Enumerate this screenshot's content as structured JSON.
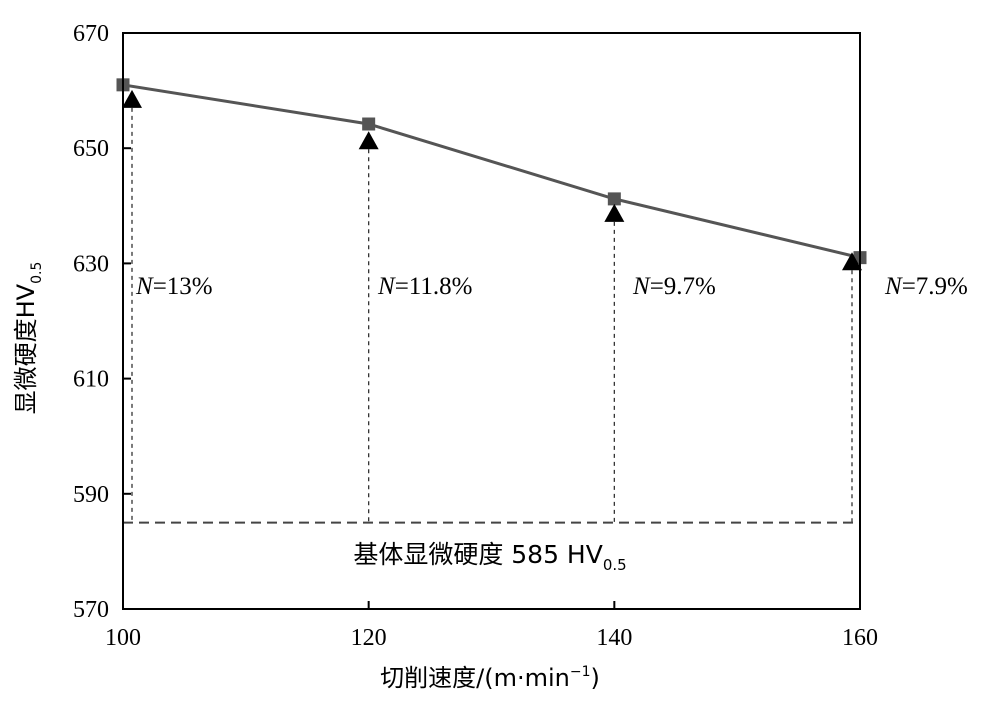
{
  "chart_data": {
    "type": "line",
    "xlabel": "切削速度/(m·min",
    "xlabel_sup": "−1",
    "xlabel_close": ")",
    "ylabel": "显微硬度HV",
    "ylabel_sub": "0.5",
    "xlim": [
      100,
      160
    ],
    "ylim": [
      570,
      670
    ],
    "x_ticks": [
      "100",
      "120",
      "140",
      "160"
    ],
    "y_ticks": [
      "570",
      "590",
      "610",
      "630",
      "650",
      "670"
    ],
    "grid": false,
    "x": [
      100,
      120,
      140,
      160
    ],
    "series": [
      {
        "marker": "square",
        "color": "#555555",
        "values": [
          661,
          654.2,
          641.2,
          631
        ]
      },
      {
        "marker": "triangle",
        "color": "#000000",
        "values": [
          658.4,
          651.2,
          638.6,
          630.2
        ]
      }
    ],
    "annotations": [
      {
        "italic": "N",
        "text": "=13%",
        "x": 100
      },
      {
        "italic": "N",
        "text": "=11.8%",
        "x": 120
      },
      {
        "italic": "N",
        "text": "=9.7%",
        "x": 140
      },
      {
        "italic": "N",
        "text": "=7.9%",
        "x": 160
      }
    ],
    "baseline": {
      "value": 585,
      "label": "基体显微硬度 585 HV",
      "label_sub": "0.5"
    }
  }
}
